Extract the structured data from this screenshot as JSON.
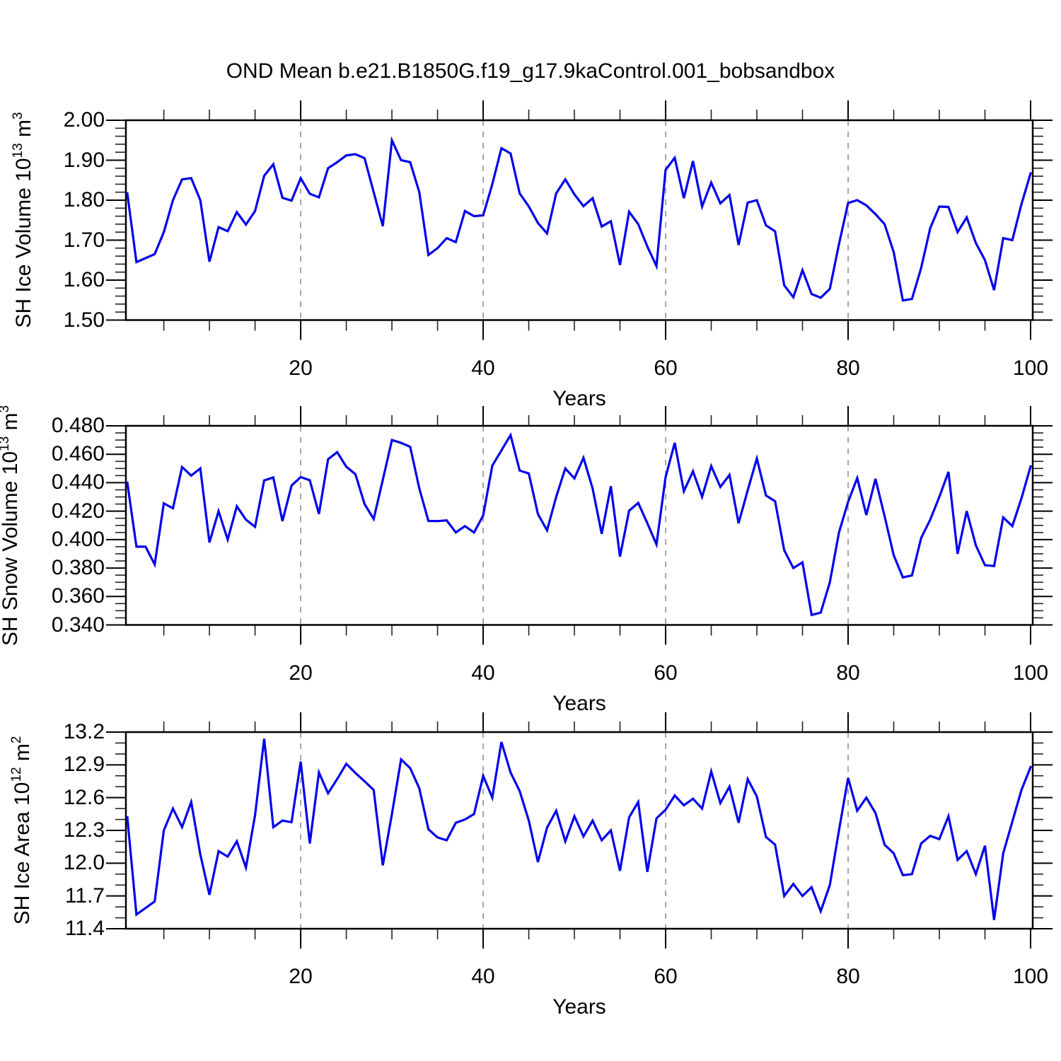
{
  "title": "OND Mean b.e21.B1850G.f19_g17.9kaControl.001_bobsandbox",
  "chart_data": [
    {
      "type": "line",
      "title": "",
      "xlabel": "Years",
      "ylabel_parts": [
        {
          "text": "SH Ice Volume 10",
          "sup": false
        },
        {
          "text": "13",
          "sup": true
        },
        {
          "text": " m",
          "sup": false
        },
        {
          "text": "3",
          "sup": true
        }
      ],
      "xlim": [
        1,
        100
      ],
      "ylim": [
        1.5,
        2.0
      ],
      "x_major_ticks": [
        {
          "v": 20,
          "label": "20"
        },
        {
          "v": 40,
          "label": "40"
        },
        {
          "v": 60,
          "label": "60"
        },
        {
          "v": 80,
          "label": "80"
        },
        {
          "v": 100,
          "label": "100"
        }
      ],
      "x_minor_step": 5,
      "y_major_ticks": [
        {
          "v": 2.0,
          "label": "2.00"
        },
        {
          "v": 1.9,
          "label": "1.90"
        },
        {
          "v": 1.8,
          "label": "1.80"
        },
        {
          "v": 1.7,
          "label": "1.70"
        },
        {
          "v": 1.6,
          "label": "1.60"
        },
        {
          "v": 1.5,
          "label": "1.50"
        }
      ],
      "y_minor_step": 0.02,
      "grid_x": [
        20,
        40,
        60,
        80
      ],
      "grid_on": "vertical-dashed-only",
      "legend": "none",
      "series_color": "#0000EE",
      "x_start": 1,
      "values": [
        1.817,
        1.645,
        1.655,
        1.665,
        1.72,
        1.8,
        1.852,
        1.855,
        1.8,
        1.646,
        1.7325,
        1.7224,
        1.77,
        1.739,
        1.773,
        1.861,
        1.89,
        1.806,
        1.799,
        1.855,
        1.816,
        1.807,
        1.88,
        1.895,
        1.912,
        1.915,
        1.905,
        1.82,
        1.735,
        1.95,
        1.9,
        1.895,
        1.82,
        1.663,
        1.68,
        1.705,
        1.695,
        1.773,
        1.76,
        1.762,
        1.84,
        1.93,
        1.917,
        1.817,
        1.7845,
        1.743,
        1.7166,
        1.817,
        1.852,
        1.8145,
        1.785,
        1.805,
        1.734,
        1.7475,
        1.638,
        1.771,
        1.74,
        1.684,
        1.635,
        1.876,
        1.906,
        1.805,
        1.898,
        1.784,
        1.844,
        1.792,
        1.813,
        1.688,
        1.794,
        1.8,
        1.737,
        1.722,
        1.587,
        1.557,
        1.625,
        1.565,
        1.556,
        1.578,
        1.69,
        1.793,
        1.8,
        1.787,
        1.765,
        1.74,
        1.67,
        1.549,
        1.553,
        1.63,
        1.73,
        1.784,
        1.783,
        1.72,
        1.757,
        1.693,
        1.65,
        1.575,
        1.705,
        1.7,
        1.79,
        1.867
      ]
    },
    {
      "type": "line",
      "title": "",
      "xlabel": "Years",
      "ylabel_parts": [
        {
          "text": "SH Snow Volume 10",
          "sup": false
        },
        {
          "text": "13",
          "sup": true
        },
        {
          "text": " m",
          "sup": false
        },
        {
          "text": "3",
          "sup": true
        }
      ],
      "xlim": [
        1,
        100
      ],
      "ylim": [
        0.34,
        0.48
      ],
      "x_major_ticks": [
        {
          "v": 20,
          "label": "20"
        },
        {
          "v": 40,
          "label": "40"
        },
        {
          "v": 60,
          "label": "60"
        },
        {
          "v": 80,
          "label": "80"
        },
        {
          "v": 100,
          "label": "100"
        }
      ],
      "x_minor_step": 5,
      "y_major_ticks": [
        {
          "v": 0.48,
          "label": "0.480"
        },
        {
          "v": 0.46,
          "label": "0.460"
        },
        {
          "v": 0.44,
          "label": "0.440"
        },
        {
          "v": 0.42,
          "label": "0.420"
        },
        {
          "v": 0.4,
          "label": "0.400"
        },
        {
          "v": 0.38,
          "label": "0.380"
        },
        {
          "v": 0.36,
          "label": "0.360"
        },
        {
          "v": 0.34,
          "label": "0.340"
        }
      ],
      "y_minor_step": 0.005,
      "grid_x": [
        20,
        40,
        60,
        80
      ],
      "grid_on": "vertical-dashed-only",
      "legend": "none",
      "series_color": "#0000EE",
      "x_start": 1,
      "values": [
        0.44,
        0.395,
        0.395,
        0.3825,
        0.4255,
        0.422,
        0.451,
        0.445,
        0.45,
        0.398,
        0.42,
        0.4,
        0.4234,
        0.414,
        0.409,
        0.4416,
        0.4437,
        0.413,
        0.438,
        0.444,
        0.4417,
        0.418,
        0.4565,
        0.4615,
        0.4512,
        0.446,
        0.425,
        0.4145,
        0.442,
        0.47,
        0.468,
        0.4653,
        0.436,
        0.4131,
        0.413,
        0.4135,
        0.405,
        0.4095,
        0.405,
        0.417,
        0.452,
        0.4627,
        0.4735,
        0.4485,
        0.4465,
        0.418,
        0.4065,
        0.43,
        0.45,
        0.443,
        0.4575,
        0.436,
        0.404,
        0.4376,
        0.388,
        0.4203,
        0.4258,
        0.4115,
        0.3966,
        0.444,
        0.468,
        0.434,
        0.448,
        0.43,
        0.4517,
        0.437,
        0.4455,
        0.4115,
        0.4347,
        0.457,
        0.431,
        0.427,
        0.3925,
        0.38,
        0.384,
        0.347,
        0.3487,
        0.37,
        0.405,
        0.4265,
        0.4433,
        0.4173,
        0.4427,
        0.4165,
        0.389,
        0.3734,
        0.3748,
        0.401,
        0.414,
        0.43,
        0.4476,
        0.39,
        0.42,
        0.396,
        0.382,
        0.3814,
        0.4156,
        0.4095,
        0.429,
        0.4515
      ]
    },
    {
      "type": "line",
      "title": "",
      "xlabel": "Years",
      "ylabel_parts": [
        {
          "text": "SH Ice Area 10",
          "sup": false
        },
        {
          "text": "12",
          "sup": true
        },
        {
          "text": " m",
          "sup": false
        },
        {
          "text": "2",
          "sup": true
        }
      ],
      "xlim": [
        1,
        100
      ],
      "ylim": [
        11.4,
        13.2
      ],
      "x_major_ticks": [
        {
          "v": 20,
          "label": "20"
        },
        {
          "v": 40,
          "label": "40"
        },
        {
          "v": 60,
          "label": "60"
        },
        {
          "v": 80,
          "label": "80"
        },
        {
          "v": 100,
          "label": "100"
        }
      ],
      "x_minor_step": 5,
      "y_major_ticks": [
        {
          "v": 13.2,
          "label": "13.2"
        },
        {
          "v": 12.9,
          "label": "12.9"
        },
        {
          "v": 12.6,
          "label": "12.6"
        },
        {
          "v": 12.3,
          "label": "12.3"
        },
        {
          "v": 12.0,
          "label": "12.0"
        },
        {
          "v": 11.7,
          "label": "11.7"
        },
        {
          "v": 11.4,
          "label": "11.4"
        }
      ],
      "y_minor_step": 0.1,
      "grid_x": [
        20,
        40,
        60,
        80
      ],
      "grid_on": "vertical-dashed-only",
      "legend": "none",
      "series_color": "#0000EE",
      "x_start": 1,
      "values": [
        12.42,
        11.53,
        11.59,
        11.65,
        12.3,
        12.5,
        12.33,
        12.56,
        12.08,
        11.71,
        12.11,
        12.06,
        12.2,
        11.96,
        12.44,
        13.14,
        12.33,
        12.39,
        12.375,
        12.93,
        12.18,
        12.83,
        12.64,
        12.77,
        12.91,
        12.825,
        12.75,
        12.67,
        11.98,
        12.45,
        12.95,
        12.87,
        12.685,
        12.31,
        12.235,
        12.21,
        12.37,
        12.4,
        12.45,
        12.8,
        12.6,
        13.11,
        12.83,
        12.66,
        12.39,
        12.01,
        12.325,
        12.48,
        12.2,
        12.43,
        12.245,
        12.39,
        12.21,
        12.3,
        11.93,
        12.42,
        12.56,
        11.92,
        12.41,
        12.49,
        12.62,
        12.53,
        12.59,
        12.5,
        12.84,
        12.55,
        12.7,
        12.37,
        12.77,
        12.61,
        12.24,
        12.17,
        11.7,
        11.81,
        11.7,
        11.78,
        11.56,
        11.8,
        12.3,
        12.78,
        12.48,
        12.6,
        12.46,
        12.17,
        12.09,
        11.89,
        11.9,
        12.18,
        12.25,
        12.22,
        12.43,
        12.03,
        12.11,
        11.9,
        12.16,
        11.48,
        12.09,
        12.38,
        12.67,
        12.88
      ]
    }
  ]
}
